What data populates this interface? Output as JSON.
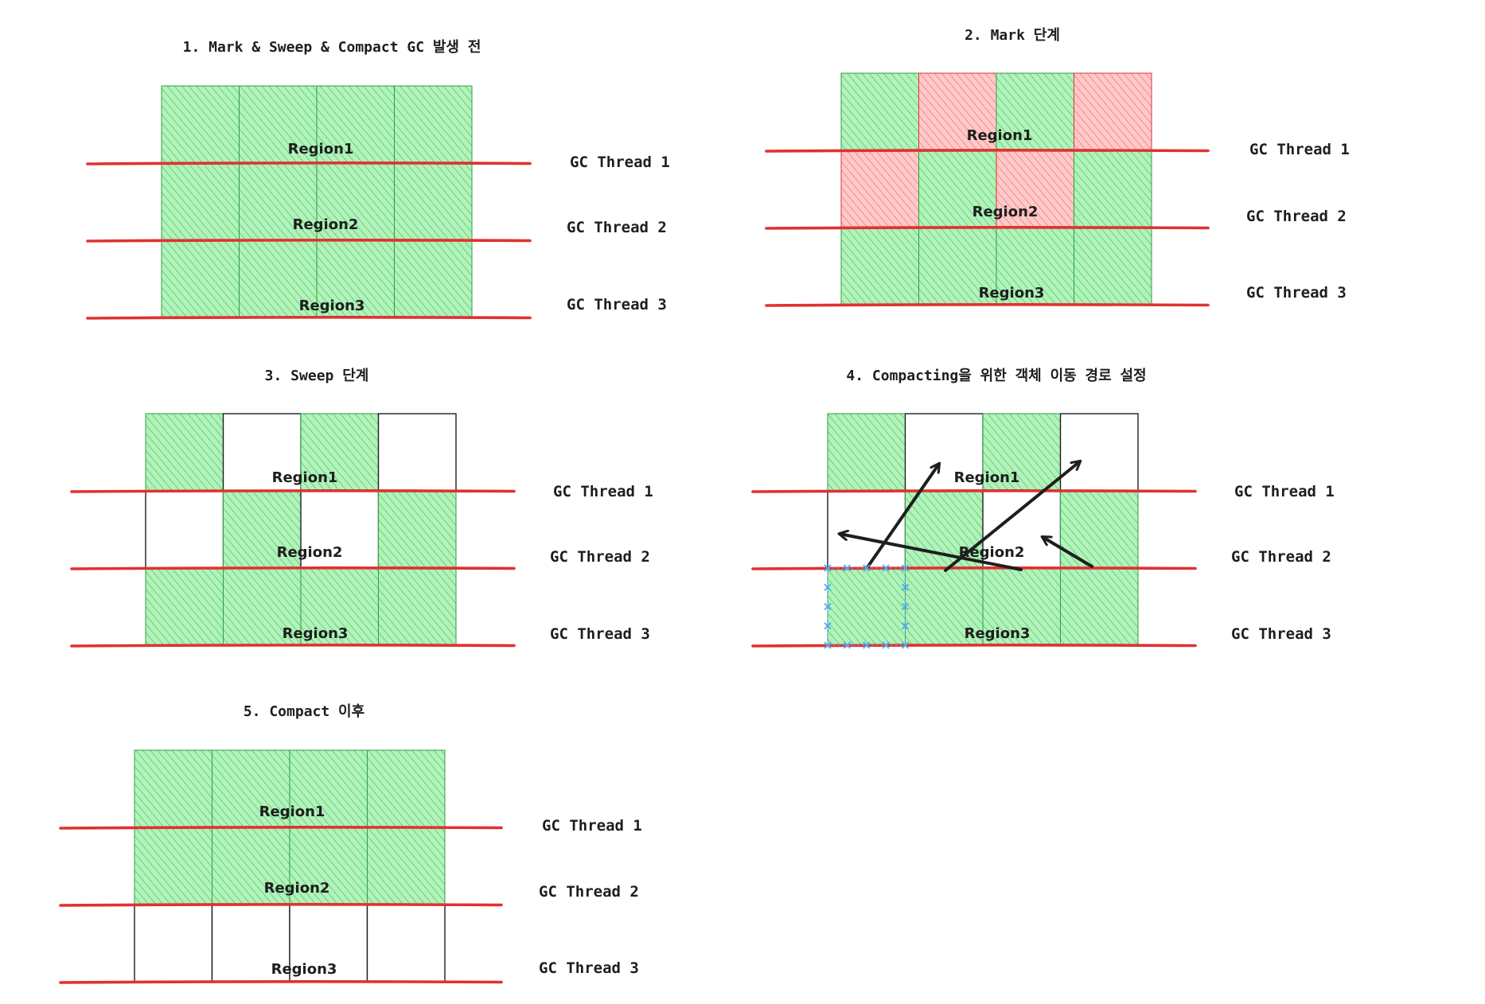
{
  "colors": {
    "live": "#b2f2bb",
    "live_hatch": "#40c057",
    "garbage": "#ffc9c9",
    "garbage_hatch": "#e03131",
    "free": "#ffffff",
    "cell_border_live": "#2f9e44",
    "cell_border_free": "#1e1e1e",
    "thread_line": "#e03131",
    "arrow": "#1e1e1e",
    "selection": "#4dabf7"
  },
  "panels": [
    {
      "id": "p1",
      "title": "1. Mark & Sweep & Compact GC 발생 전",
      "threads": [
        "GC Thread 1",
        "GC Thread 2",
        "GC Thread 3"
      ],
      "regions": [
        "Region1",
        "Region2",
        "Region3"
      ],
      "cells": [
        [
          "live",
          "live",
          "live",
          "live"
        ],
        [
          "live",
          "live",
          "live",
          "live"
        ],
        [
          "live",
          "live",
          "live",
          "live"
        ]
      ]
    },
    {
      "id": "p2",
      "title": "2. Mark 단계",
      "threads": [
        "GC Thread 1",
        "GC Thread 2",
        "GC Thread 3"
      ],
      "regions": [
        "Region1",
        "Region2",
        "Region3"
      ],
      "cells": [
        [
          "live",
          "garbage",
          "live",
          "garbage"
        ],
        [
          "garbage",
          "live",
          "garbage",
          "live"
        ],
        [
          "live",
          "live",
          "live",
          "live"
        ]
      ]
    },
    {
      "id": "p3",
      "title": "3. Sweep 단계",
      "threads": [
        "GC Thread 1",
        "GC Thread 2",
        "GC Thread 3"
      ],
      "regions": [
        "Region1",
        "Region2",
        "Region3"
      ],
      "cells": [
        [
          "live",
          "free",
          "live",
          "free"
        ],
        [
          "free",
          "live",
          "free",
          "live"
        ],
        [
          "live",
          "live",
          "live",
          "live"
        ]
      ]
    },
    {
      "id": "p4",
      "title": "4. Compacting을 위한 객체 이동 경로 설정",
      "threads": [
        "GC Thread 1",
        "GC Thread 2",
        "GC Thread 3"
      ],
      "regions": [
        "Region1",
        "Region2",
        "Region3"
      ],
      "cells": [
        [
          "live",
          "free",
          "live",
          "free"
        ],
        [
          "free",
          "live",
          "free",
          "live"
        ],
        [
          "live",
          "live",
          "live",
          "live"
        ]
      ]
    },
    {
      "id": "p5",
      "title": "5. Compact 이후",
      "threads": [
        "GC Thread 1",
        "GC Thread 2",
        "GC Thread 3"
      ],
      "regions": [
        "Region1",
        "Region2",
        "Region3"
      ],
      "cells": [
        [
          "live",
          "live",
          "live",
          "live"
        ],
        [
          "live",
          "live",
          "live",
          "live"
        ],
        [
          "free",
          "free",
          "free",
          "free"
        ]
      ]
    }
  ]
}
